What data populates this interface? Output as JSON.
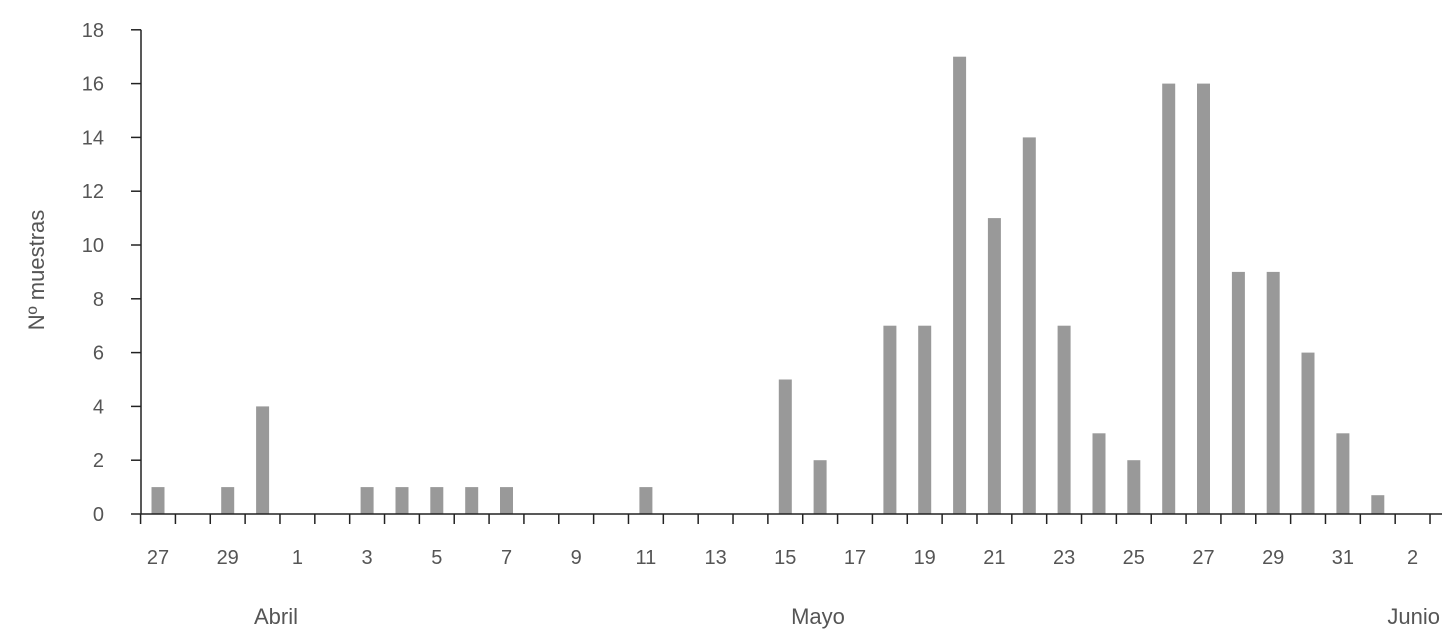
{
  "chart_data": {
    "type": "bar",
    "ylabel": "Nº muestras",
    "ylim": [
      0,
      18
    ],
    "yticks": [
      "0",
      "2",
      "4",
      "6",
      "8",
      "10",
      "12",
      "14",
      "16",
      "18"
    ],
    "xticks": [
      "27",
      "29",
      "1",
      "3",
      "5",
      "7",
      "9",
      "11",
      "13",
      "15",
      "17",
      "19",
      "21",
      "23",
      "25",
      "27",
      "29",
      "31",
      "2"
    ],
    "months": [
      "Abril",
      "Mayo",
      "Junio"
    ],
    "categories": [
      "27 Abr",
      "28 Abr",
      "29 Abr",
      "30 Abr",
      "1 May",
      "2 May",
      "3 May",
      "4 May",
      "5 May",
      "6 May",
      "7 May",
      "8 May",
      "9 May",
      "10 May",
      "11 May",
      "12 May",
      "13 May",
      "14 May",
      "15 May",
      "16 May",
      "17 May",
      "18 May",
      "19 May",
      "20 May",
      "21 May",
      "22 May",
      "23 May",
      "24 May",
      "25 May",
      "26 May",
      "27 May",
      "28 May",
      "29 May",
      "30 May",
      "31 May",
      "1 Jun",
      "2 Jun",
      "3 Jun"
    ],
    "values": [
      1,
      0,
      1,
      4,
      0,
      0,
      1,
      1,
      1,
      1,
      1,
      0,
      0,
      0,
      1,
      0,
      0,
      0,
      5,
      2,
      0,
      7,
      7,
      17,
      11,
      14,
      7,
      3,
      2,
      16,
      16,
      9,
      9,
      6,
      3,
      0.7,
      0,
      0
    ],
    "bar_color": "#999999",
    "axis_color": "#222222",
    "grid": false
  }
}
